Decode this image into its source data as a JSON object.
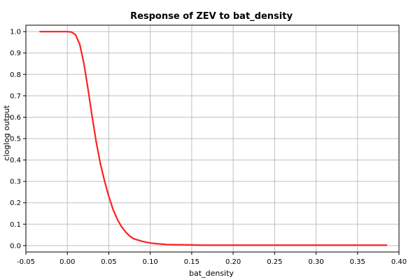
{
  "chart_data": {
    "type": "line",
    "title": "Response of ZEV to bat_density",
    "xlabel": "bat_density",
    "ylabel": "cloglog output",
    "xlim": [
      -0.05,
      0.4
    ],
    "ylim": [
      -0.03,
      1.03
    ],
    "grid": true,
    "legend": "none",
    "x_ticks": [
      "-0.05",
      "0.00",
      "0.05",
      "0.10",
      "0.15",
      "0.20",
      "0.25",
      "0.30",
      "0.35",
      "0.40"
    ],
    "y_ticks": [
      "0.0",
      "0.1",
      "0.2",
      "0.3",
      "0.4",
      "0.5",
      "0.6",
      "0.7",
      "0.8",
      "0.9",
      "1.0"
    ],
    "series": [
      {
        "color": "#ff2020",
        "x": [
          -0.033,
          -0.02,
          -0.01,
          0.0,
          0.005,
          0.01,
          0.015,
          0.02,
          0.025,
          0.03,
          0.035,
          0.04,
          0.045,
          0.05,
          0.055,
          0.06,
          0.065,
          0.07,
          0.075,
          0.08,
          0.09,
          0.1,
          0.11,
          0.12,
          0.13,
          0.15,
          0.16,
          0.2,
          0.25,
          0.3,
          0.35,
          0.385
        ],
        "y": [
          1.0,
          1.0,
          1.0,
          1.0,
          0.998,
          0.985,
          0.94,
          0.85,
          0.73,
          0.6,
          0.48,
          0.38,
          0.3,
          0.23,
          0.17,
          0.125,
          0.09,
          0.065,
          0.045,
          0.032,
          0.02,
          0.012,
          0.008,
          0.005,
          0.004,
          0.003,
          0.002,
          0.002,
          0.002,
          0.002,
          0.002,
          0.002
        ]
      }
    ]
  }
}
